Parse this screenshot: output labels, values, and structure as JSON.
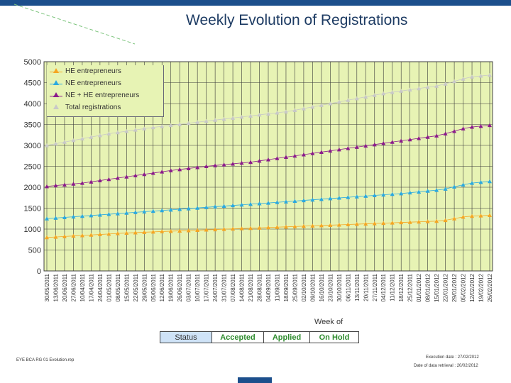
{
  "title": "Weekly Evolution of Registrations",
  "colors": {
    "bar": "#1c4f8c",
    "plot_bg": "#e7f3b4",
    "grid": "#3a3a3a"
  },
  "chart_data": {
    "type": "line",
    "title": "Weekly Evolution of Registrations",
    "xlabel": "Week of",
    "ylabel": "",
    "ylim": [
      0,
      5000
    ],
    "yticks": [
      0,
      500,
      1000,
      1500,
      2000,
      2500,
      3000,
      3500,
      4000,
      4500,
      5000
    ],
    "legend_position": "top-left",
    "categories": [
      "30/05/2011",
      "13/06/2011",
      "20/06/2011",
      "27/06/2011",
      "10/04/2011",
      "17/04/2011",
      "24/04/2011",
      "01/05/2011",
      "08/05/2011",
      "15/05/2011",
      "22/05/2011",
      "29/05/2011",
      "05/06/2011",
      "12/06/2011",
      "19/06/2011",
      "26/06/2011",
      "03/07/2011",
      "10/07/2011",
      "17/07/2011",
      "24/07/2011",
      "31/07/2011",
      "07/08/2011",
      "14/08/2011",
      "21/08/2011",
      "28/08/2011",
      "04/09/2011",
      "11/09/2011",
      "18/09/2011",
      "25/09/2011",
      "02/10/2011",
      "09/10/2011",
      "16/10/2011",
      "23/10/2011",
      "30/10/2011",
      "06/11/2011",
      "13/11/2011",
      "20/11/2011",
      "27/11/2011",
      "04/12/2011",
      "11/12/2011",
      "18/12/2011",
      "25/12/2011",
      "01/01/2012",
      "08/01/2012",
      "15/01/2012",
      "22/01/2012",
      "29/01/2012",
      "05/02/2012",
      "12/02/2012",
      "19/02/2012",
      "26/02/2012"
    ],
    "series": [
      {
        "name": "HE entrepreneurs",
        "color": "#f5a623",
        "values": [
          800,
          812,
          824,
          836,
          848,
          860,
          872,
          884,
          896,
          906,
          916,
          925,
          934,
          942,
          950,
          958,
          966,
          974,
          982,
          990,
          998,
          1006,
          1014,
          1022,
          1030,
          1038,
          1046,
          1054,
          1062,
          1070,
          1078,
          1086,
          1094,
          1102,
          1110,
          1118,
          1126,
          1134,
          1142,
          1150,
          1158,
          1166,
          1174,
          1182,
          1190,
          1210,
          1250,
          1290,
          1310,
          1320,
          1330
        ]
      },
      {
        "name": "NE entrepreneurs",
        "color": "#2aa9e0",
        "values": [
          1250,
          1265,
          1280,
          1295,
          1310,
          1325,
          1340,
          1355,
          1370,
          1385,
          1400,
          1415,
          1430,
          1445,
          1460,
          1475,
          1490,
          1505,
          1520,
          1535,
          1550,
          1565,
          1580,
          1595,
          1610,
          1625,
          1640,
          1655,
          1670,
          1685,
          1700,
          1715,
          1730,
          1745,
          1760,
          1775,
          1790,
          1805,
          1820,
          1835,
          1850,
          1870,
          1890,
          1910,
          1930,
          1960,
          2010,
          2060,
          2100,
          2120,
          2140
        ]
      },
      {
        "name": "NE + HE entrepreneurs",
        "color": "#8b1a8b",
        "values": [
          2020,
          2040,
          2060,
          2080,
          2100,
          2130,
          2160,
          2190,
          2220,
          2250,
          2280,
          2310,
          2340,
          2370,
          2400,
          2425,
          2450,
          2475,
          2500,
          2520,
          2540,
          2560,
          2580,
          2600,
          2630,
          2660,
          2690,
          2720,
          2750,
          2780,
          2810,
          2840,
          2870,
          2900,
          2930,
          2960,
          2990,
          3020,
          3050,
          3080,
          3110,
          3140,
          3170,
          3200,
          3230,
          3280,
          3340,
          3400,
          3440,
          3460,
          3480
        ]
      },
      {
        "name": "Total registrations",
        "color": "#c8c8c8",
        "values": [
          3000,
          3040,
          3080,
          3120,
          3160,
          3200,
          3240,
          3280,
          3310,
          3340,
          3370,
          3400,
          3430,
          3455,
          3480,
          3505,
          3530,
          3555,
          3580,
          3605,
          3630,
          3655,
          3680,
          3705,
          3730,
          3755,
          3780,
          3805,
          3840,
          3880,
          3920,
          3960,
          4000,
          4040,
          4080,
          4120,
          4160,
          4200,
          4240,
          4270,
          4300,
          4330,
          4360,
          4390,
          4420,
          4470,
          4530,
          4590,
          4640,
          4660,
          4680
        ]
      }
    ]
  },
  "status_table": {
    "status": "Status",
    "accepted": "Accepted",
    "applied": "Applied",
    "on_hold": "On Hold"
  },
  "footer": {
    "left": "EYE BCA   RG 01   Evolution.rep",
    "execution": "Execution date : 27/02/2012",
    "retention": "Date of data retrieval : 20/02/2012"
  }
}
